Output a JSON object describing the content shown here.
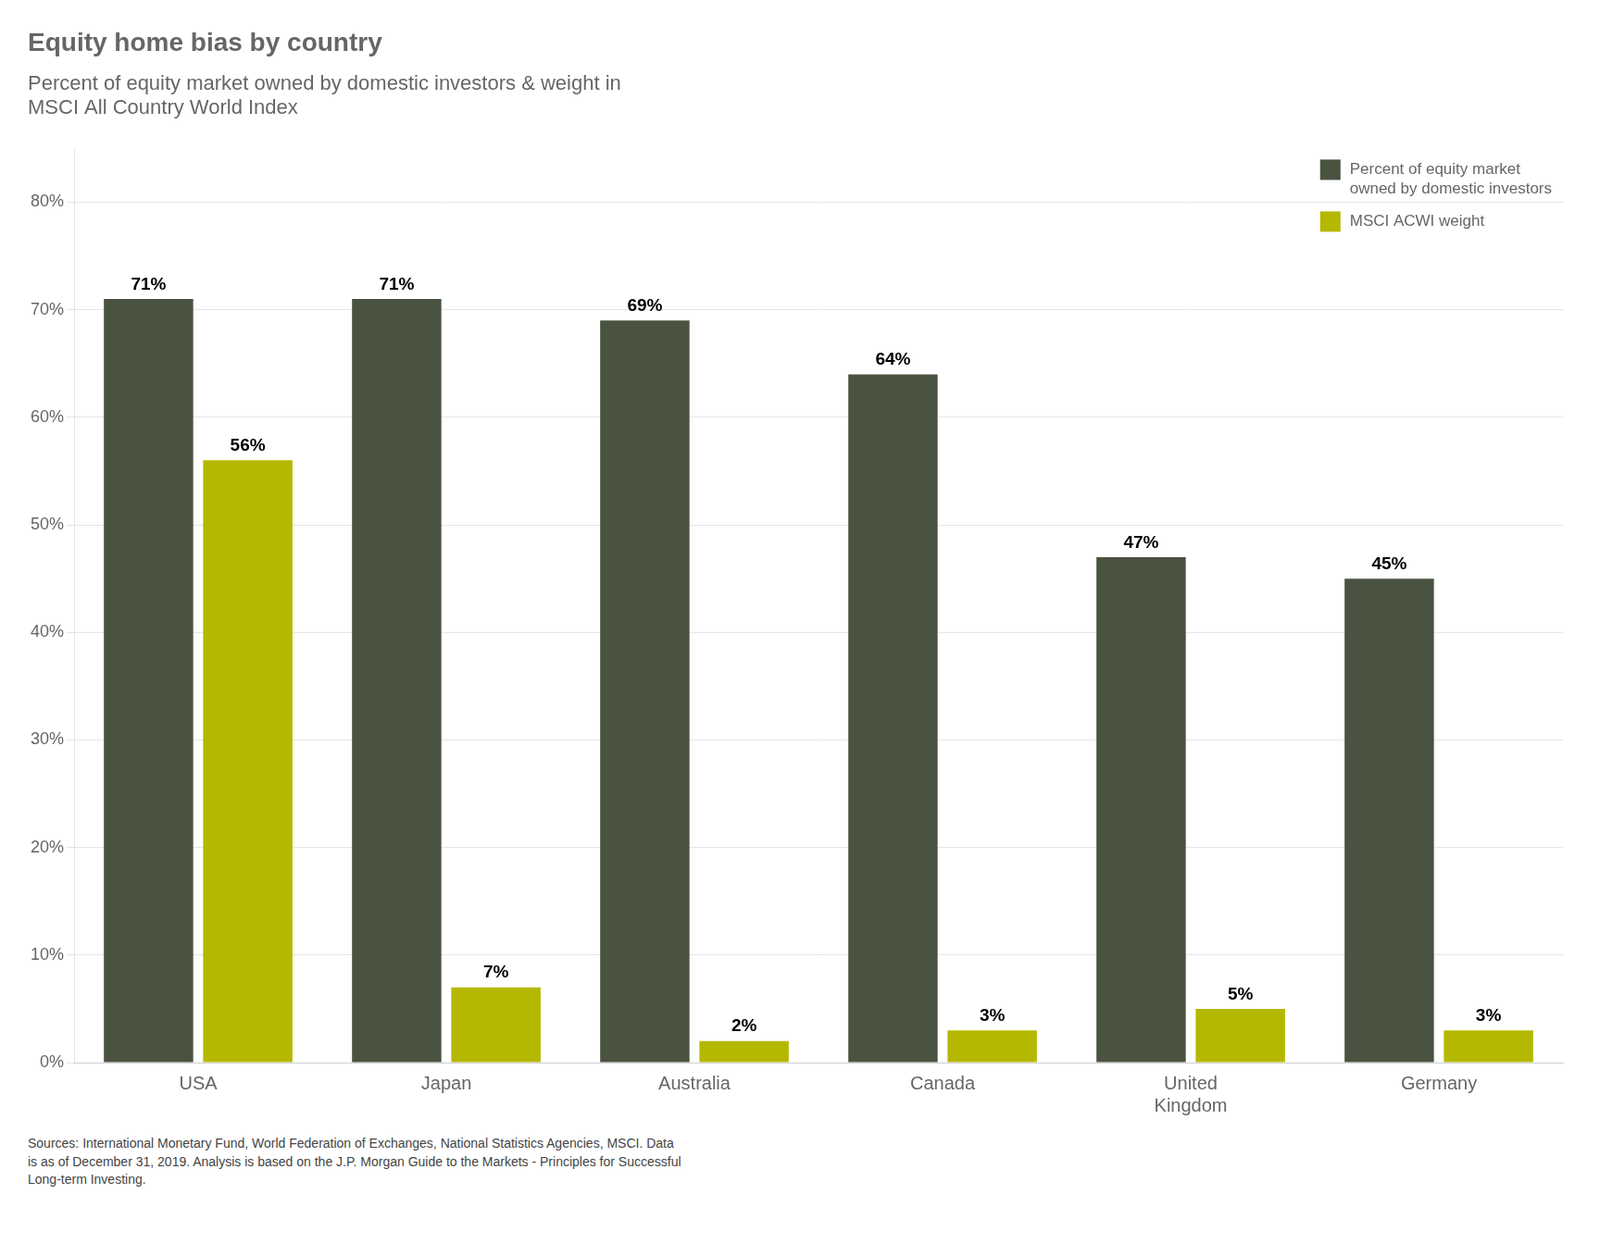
{
  "chart_data": {
    "type": "bar",
    "title": "Equity home bias by country",
    "subtitle": "Percent of equity market owned by domestic investors & weight in\nMSCI All Country World Index",
    "footnote": "Sources: International Monetary Fund, World Federation of Exchanges, National Statistics Agencies, MSCI. Data\nis as of December 31, 2019. Analysis is based on the J.P. Morgan Guide to the Markets - Principles for Successful\nLong-term Investing.",
    "categories": [
      "USA",
      "Japan",
      "Australia",
      "Canada",
      "United\nKingdom",
      "Germany"
    ],
    "series": [
      {
        "name": "Percent of equity market\nowned by domestic investors",
        "color": "#4a5240",
        "values": [
          71,
          71,
          69,
          64,
          47,
          45
        ],
        "value_labels": [
          "71%",
          "71%",
          "69%",
          "64%",
          "47%",
          "45%"
        ]
      },
      {
        "name": "MSCI ACWI weight",
        "color": "#b5b800",
        "values": [
          56,
          7,
          2,
          3,
          5,
          3
        ],
        "value_labels": [
          "56%",
          "7%",
          "2%",
          "3%",
          "5%",
          "3%"
        ]
      }
    ],
    "ylim": [
      0,
      85
    ],
    "yticks": [
      {
        "value": 0,
        "label": "0%"
      },
      {
        "value": 10,
        "label": "10%"
      },
      {
        "value": 20,
        "label": "20%"
      },
      {
        "value": 30,
        "label": "30%"
      },
      {
        "value": 40,
        "label": "40%"
      },
      {
        "value": 50,
        "label": "50%"
      },
      {
        "value": 60,
        "label": "60%"
      },
      {
        "value": 70,
        "label": "70%"
      },
      {
        "value": 80,
        "label": "80%"
      }
    ],
    "grid": true,
    "legend": "upper right",
    "data_labels": true
  }
}
